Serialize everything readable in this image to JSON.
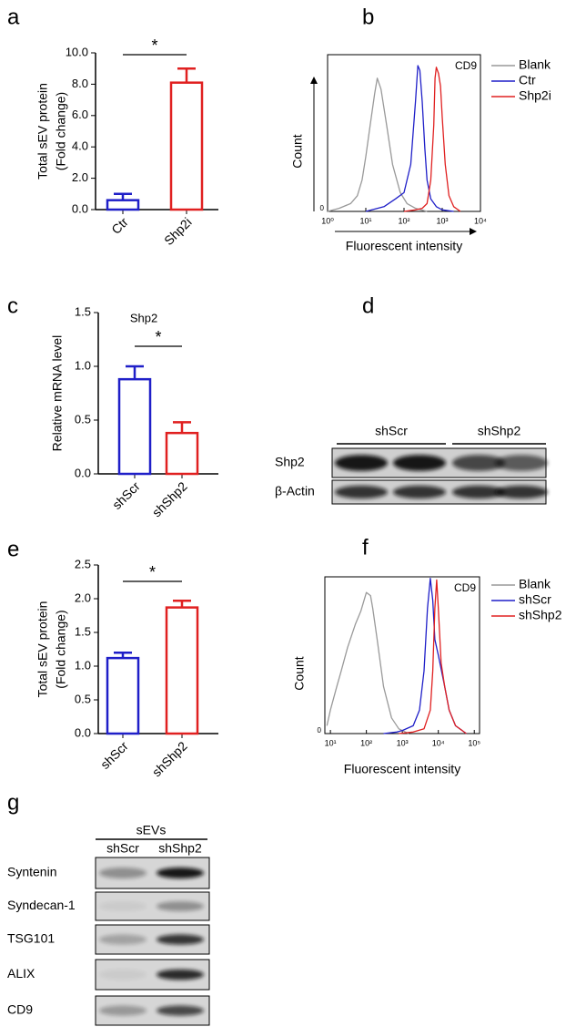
{
  "panel_labels": [
    "a",
    "b",
    "c",
    "d",
    "e",
    "f",
    "g"
  ],
  "chart_data": [
    {
      "type": "bar",
      "ylabel": [
        "Total sEV protein",
        "(Fold change)"
      ],
      "categories": [
        "Ctr",
        "Shp2i"
      ],
      "values": [
        0.6,
        8.1
      ],
      "errors": [
        0.4,
        0.9
      ],
      "colors": [
        "#1f1fc8",
        "#e02020"
      ],
      "ylim": [
        0,
        10
      ],
      "yticks": [
        {
          "value": 0,
          "label": "0.0"
        },
        {
          "value": 2,
          "label": "2.0"
        },
        {
          "value": 4,
          "label": "4.0"
        },
        {
          "value": 6,
          "label": "6.0"
        },
        {
          "value": 8,
          "label": "8.0"
        },
        {
          "value": 10,
          "label": "10.0"
        }
      ],
      "annotation": "*"
    },
    {
      "type": "line",
      "annotation": "CD9",
      "xlabel": "Fluorescent intensity",
      "ylabel": "Count",
      "xlog": true,
      "xlim": [
        1,
        10000
      ],
      "xticks": [
        {
          "value": 1,
          "label": "10⁰"
        },
        {
          "value": 10,
          "label": "10¹"
        },
        {
          "value": 100,
          "label": "10²"
        },
        {
          "value": 1000,
          "label": "10³"
        },
        {
          "value": 10000,
          "label": "10⁴"
        }
      ],
      "ylim": [
        0,
        100
      ],
      "yticks": [
        0
      ],
      "series": [
        {
          "name": "Blank",
          "color": "#999999",
          "x": [
            1,
            2,
            4,
            6,
            8,
            10,
            13,
            17,
            20,
            25,
            35,
            50,
            80,
            120,
            200,
            400
          ],
          "values": [
            0,
            2,
            5,
            10,
            20,
            35,
            55,
            75,
            85,
            78,
            55,
            30,
            12,
            5,
            2,
            0
          ]
        },
        {
          "name": "Ctr",
          "color": "#1f1fc8",
          "x": [
            10,
            30,
            60,
            100,
            150,
            200,
            230,
            260,
            300,
            350,
            400,
            500,
            700,
            1000,
            2000
          ],
          "values": [
            0,
            3,
            8,
            12,
            30,
            70,
            93,
            90,
            70,
            40,
            20,
            8,
            3,
            1,
            0
          ]
        },
        {
          "name": "Shp2i",
          "color": "#e02020",
          "x": [
            100,
            200,
            300,
            400,
            500,
            600,
            650,
            700,
            800,
            900,
            1000,
            1200,
            1500,
            2000,
            3000
          ],
          "values": [
            0,
            1,
            2,
            5,
            20,
            55,
            85,
            92,
            88,
            80,
            60,
            30,
            10,
            3,
            0
          ]
        }
      ]
    },
    {
      "type": "bar",
      "title": "Shp2",
      "ylabel": [
        "Relative mRNA level"
      ],
      "categories": [
        "shScr",
        "shShp2"
      ],
      "values": [
        0.88,
        0.38
      ],
      "errors": [
        0.12,
        0.1
      ],
      "colors": [
        "#1f1fc8",
        "#e02020"
      ],
      "ylim": [
        0,
        1.5
      ],
      "yticks": [
        {
          "value": 0,
          "label": "0.0"
        },
        {
          "value": 0.5,
          "label": "0.5"
        },
        {
          "value": 1,
          "label": "1.0"
        },
        {
          "value": 1.5,
          "label": "1.5"
        }
      ],
      "annotation": "*"
    },
    {
      "type": "bar",
      "ylabel": [
        "Total sEV protein",
        "(Fold change)"
      ],
      "categories": [
        "shScr",
        "shShp2"
      ],
      "values": [
        1.12,
        1.87
      ],
      "errors": [
        0.08,
        0.1
      ],
      "colors": [
        "#1f1fc8",
        "#e02020"
      ],
      "ylim": [
        0,
        2.5
      ],
      "yticks": [
        {
          "value": 0,
          "label": "0.0"
        },
        {
          "value": 0.5,
          "label": "0.5"
        },
        {
          "value": 1,
          "label": "1.0"
        },
        {
          "value": 1.5,
          "label": "1.5"
        },
        {
          "value": 2,
          "label": "2.0"
        },
        {
          "value": 2.5,
          "label": "2.5"
        }
      ],
      "annotation": "*"
    },
    {
      "type": "line",
      "annotation": "CD9",
      "xlabel": "Fluorescent intensity",
      "ylabel": "Count",
      "xlog": true,
      "xlim": [
        7,
        140000
      ],
      "xticks": [
        {
          "value": 10,
          "label": "10¹"
        },
        {
          "value": 100,
          "label": "10²"
        },
        {
          "value": 1000,
          "label": "10³"
        },
        {
          "value": 10000,
          "label": "10⁴"
        },
        {
          "value": 100000,
          "label": "10⁵"
        }
      ],
      "ylim": [
        0,
        100
      ],
      "yticks": [
        0
      ],
      "series": [
        {
          "name": "Blank",
          "color": "#999999",
          "x": [
            8,
            10,
            15,
            20,
            30,
            50,
            70,
            100,
            130,
            150,
            200,
            300,
            500,
            800,
            1500
          ],
          "values": [
            5,
            15,
            30,
            40,
            55,
            70,
            78,
            90,
            88,
            80,
            60,
            30,
            10,
            3,
            0
          ]
        },
        {
          "name": "shScr",
          "color": "#1f1fc8",
          "x": [
            300,
            700,
            1000,
            2000,
            3000,
            4000,
            5000,
            6000,
            7000,
            8000,
            10000,
            15000,
            20000,
            30000,
            60000
          ],
          "values": [
            0,
            1,
            2,
            5,
            15,
            40,
            80,
            99,
            85,
            60,
            50,
            30,
            15,
            5,
            0
          ]
        },
        {
          "name": "shShp2",
          "color": "#e02020",
          "x": [
            800,
            2000,
            4000,
            6000,
            7000,
            8000,
            9000,
            10000,
            12000,
            15000,
            20000,
            30000,
            60000
          ],
          "values": [
            0,
            1,
            3,
            15,
            40,
            80,
            98,
            80,
            45,
            30,
            15,
            5,
            0
          ]
        }
      ]
    }
  ],
  "blot_d": {
    "groups": [
      "shScr",
      "shShp2"
    ],
    "rows": [
      "Shp2",
      "β-Actin"
    ]
  },
  "blot_g": {
    "header": "sEVs",
    "lanes": [
      "shScr",
      "shShp2"
    ],
    "rows": [
      "Syntenin",
      "Syndecan-1",
      "TSG101",
      "ALIX",
      "CD9"
    ]
  }
}
